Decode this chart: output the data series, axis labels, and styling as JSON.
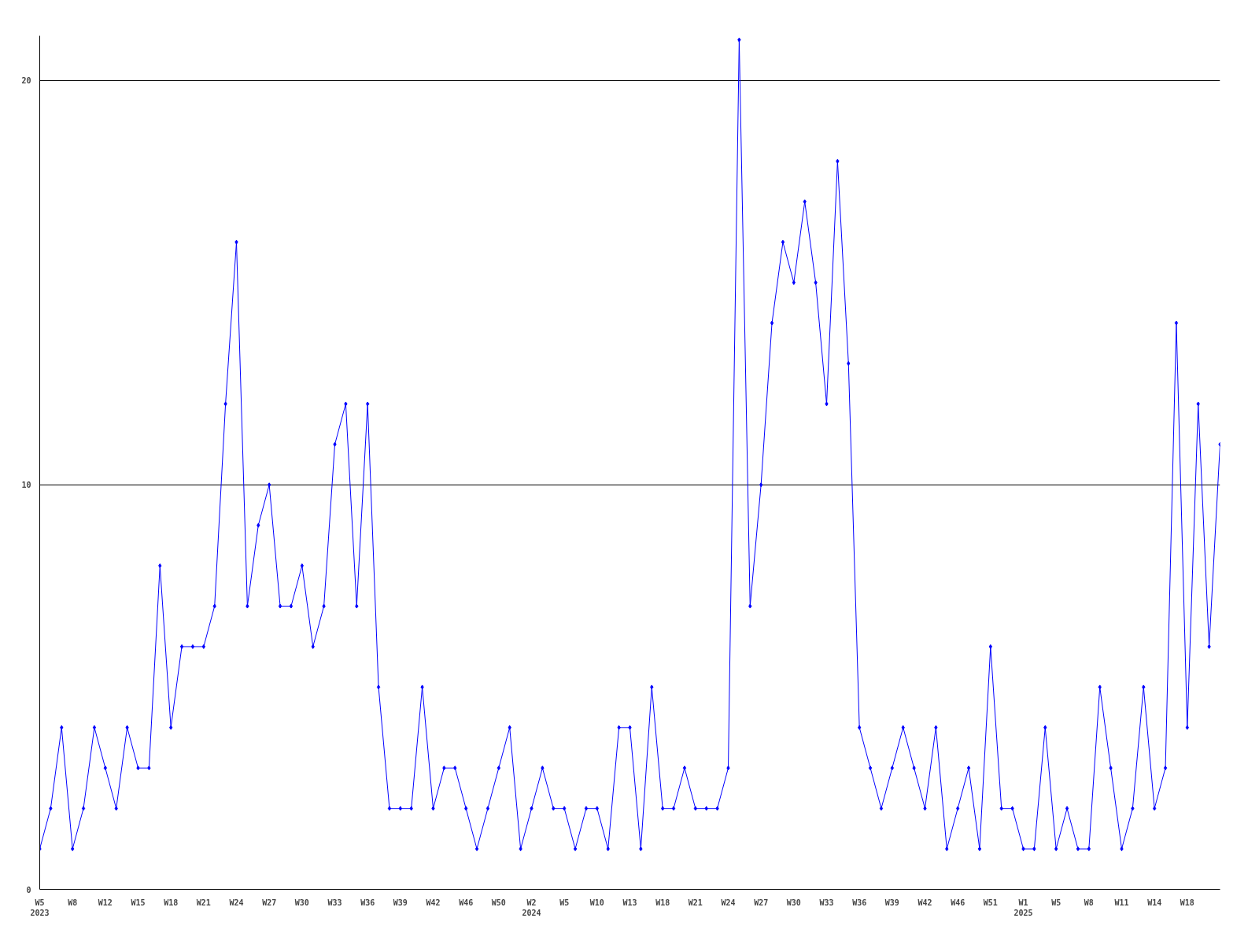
{
  "chart_data": {
    "type": "line",
    "categories": [
      "W5\n2023",
      null,
      null,
      "W8",
      null,
      null,
      "W12",
      null,
      null,
      "W15",
      null,
      null,
      "W18",
      null,
      null,
      "W21",
      null,
      null,
      "W24",
      null,
      null,
      "W27",
      null,
      null,
      "W30",
      null,
      null,
      "W33",
      null,
      null,
      "W36",
      null,
      null,
      "W39",
      null,
      null,
      "W42",
      null,
      null,
      "W46",
      null,
      null,
      "W50",
      null,
      null,
      "W2\n2024",
      null,
      null,
      "W5",
      null,
      null,
      "W10",
      null,
      null,
      "W13",
      null,
      null,
      "W18",
      null,
      null,
      "W21",
      null,
      null,
      "W24",
      null,
      null,
      "W27",
      null,
      null,
      "W30",
      null,
      null,
      "W33",
      null,
      null,
      "W36",
      null,
      null,
      "W39",
      null,
      null,
      "W42",
      null,
      null,
      "W46",
      null,
      null,
      "W51",
      null,
      null,
      "W1\n2025",
      null,
      null,
      "W5",
      null,
      null,
      "W8",
      null,
      null,
      "W11",
      null,
      null,
      "W14",
      null,
      null,
      "W18",
      null,
      null,
      null
    ],
    "series": [
      {
        "color": "#0000ff",
        "values": [
          1,
          2,
          4,
          1,
          2,
          4,
          3,
          2,
          4,
          3,
          3,
          8,
          4,
          6,
          6,
          6,
          7,
          12,
          16,
          7,
          9,
          10,
          7,
          7,
          8,
          6,
          7,
          11,
          12,
          7,
          12,
          5,
          2,
          2,
          2,
          5,
          2,
          3,
          3,
          2,
          1,
          2,
          3,
          4,
          1,
          2,
          3,
          2,
          2,
          1,
          2,
          2,
          1,
          4,
          4,
          1,
          5,
          2,
          2,
          3,
          2,
          2,
          2,
          3,
          21,
          7,
          10,
          14,
          16,
          15,
          17,
          15,
          12,
          18,
          13,
          4,
          3,
          2,
          3,
          4,
          3,
          2,
          4,
          1,
          2,
          3,
          1,
          6,
          2,
          2,
          1,
          1,
          4,
          1,
          2,
          1,
          1,
          5,
          3,
          1,
          2,
          5,
          2,
          3,
          14,
          4,
          12,
          6,
          11
        ]
      }
    ],
    "ylim": [
      0,
      21.1
    ],
    "yticks": [
      0,
      10,
      20
    ],
    "grid": "y",
    "marker": "diamond",
    "line_style": "solid"
  }
}
